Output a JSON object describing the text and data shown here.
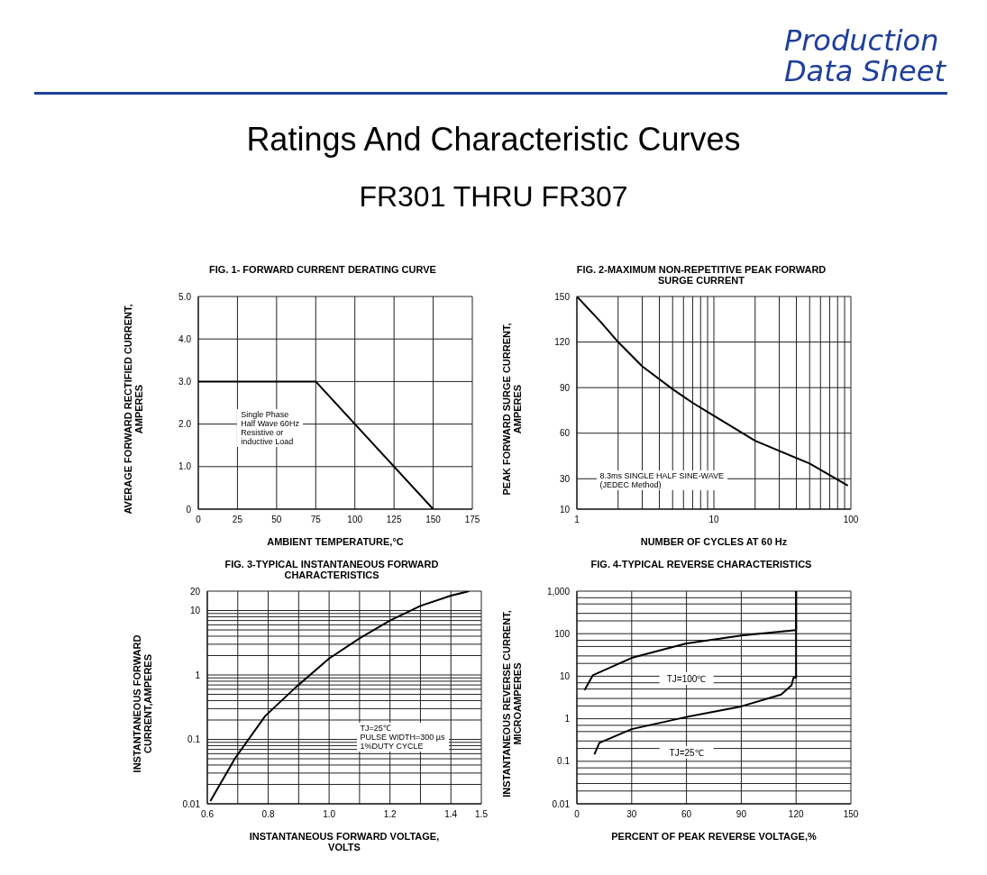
{
  "chart_data": [
    {
      "type": "other",
      "title": "Ratings And  Characteristic Curves",
      "subtitle": "FR301 THRU FR307",
      "annotations": [
        "Production\nData Sheet"
      ]
    },
    {
      "type": "line",
      "title": "FIG. 1- FORWARD CURRENT DERATING CURVE",
      "xlabel": "AMBIENT TEMPERATURE,°C",
      "ylabel": "AVERAGE FORWARD RECTIFIED CURRENT,\nAMPERES",
      "x": [
        0,
        75,
        150
      ],
      "values": [
        3,
        3,
        0
      ],
      "color": "#000000",
      "xlim": [
        0,
        175
      ],
      "xticks": [
        0,
        25,
        50,
        75,
        100,
        125,
        150,
        175
      ],
      "ylim": [
        0,
        5
      ],
      "yticks": [
        0,
        {
          "value": 1,
          "label": "1.0"
        },
        {
          "value": 2,
          "label": "2.0"
        },
        {
          "value": 3,
          "label": "3.0"
        },
        {
          "value": 4,
          "label": "4.0"
        },
        {
          "value": 5,
          "label": "5.0"
        }
      ],
      "grid": true,
      "annotations": [
        "Single Phase\nHalf Wave 60Hz\nResistive or\ninductive Load"
      ]
    },
    {
      "type": "line",
      "title": "FIG. 2-MAXIMUM NON-REPETITIVE PEAK FORWARD\nSURGE CURRENT",
      "xlabel": "NUMBER OF CYCLES AT 60 Hz",
      "ylabel": "PEAK  FORWARD SURGE CURRENT,\nAMPERES",
      "x": [
        1,
        1.5,
        2,
        3,
        5,
        7,
        10,
        20,
        50,
        95
      ],
      "values": [
        150,
        133,
        120,
        104,
        89,
        80,
        71.5,
        55,
        40,
        25.5
      ],
      "color": "#000000",
      "log": "x",
      "xlim": [
        1,
        100
      ],
      "xticks": [
        1,
        {
          "value": 2,
          "label": null
        },
        {
          "value": 3,
          "label": null
        },
        {
          "value": 4,
          "label": null
        },
        {
          "value": 5,
          "label": null
        },
        {
          "value": 6,
          "label": null
        },
        {
          "value": 7,
          "label": null
        },
        {
          "value": 8,
          "label": null
        },
        {
          "value": 9,
          "label": null
        },
        10,
        {
          "value": 20,
          "label": null
        },
        {
          "value": 30,
          "label": null
        },
        {
          "value": 40,
          "label": null
        },
        {
          "value": 50,
          "label": null
        },
        {
          "value": 60,
          "label": null
        },
        {
          "value": 70,
          "label": null
        },
        {
          "value": 80,
          "label": null
        },
        {
          "value": 90,
          "label": null
        },
        100
      ],
      "ylim": [
        10,
        150
      ],
      "yticks": [
        10,
        30,
        60,
        90,
        120,
        150
      ],
      "grid": true,
      "annotations": [
        "8.3ms SINGLE HALF SINE-WAVE\n(JEDEC Method)"
      ]
    },
    {
      "type": "line",
      "title": "FIG. 3-TYPICAL INSTANTANEOUS FORWARD\nCHARACTERISTICS",
      "xlabel": "INSTANTANEOUS FORWARD VOLTAGE,\nVOLTS",
      "ylabel": "INSTANTANEOUS FORWARD\nCURRENT,AMPERES",
      "x": [
        0.61,
        0.69,
        0.79,
        0.89,
        1.0,
        1.1,
        1.2,
        1.3,
        1.4,
        1.46
      ],
      "values": [
        0.011,
        0.05,
        0.23,
        0.64,
        1.8,
        3.7,
        7,
        11.8,
        17,
        20
      ],
      "color": "#000000",
      "log": "y",
      "xlim": [
        0.6,
        1.5
      ],
      "xticks": [
        0.6,
        {
          "value": 0.7,
          "label": null
        },
        0.8,
        {
          "value": 0.9,
          "label": null
        },
        {
          "value": 1,
          "label": "1.0"
        },
        {
          "value": 1.1,
          "label": null
        },
        1.2,
        {
          "value": 1.3,
          "label": null
        },
        1.4,
        1.5
      ],
      "ylim": [
        0.01,
        20
      ],
      "yticks": [
        0.01,
        {
          "value": 0.02,
          "label": null
        },
        {
          "value": 0.03,
          "label": null
        },
        {
          "value": 0.04,
          "label": null
        },
        {
          "value": 0.05,
          "label": null
        },
        {
          "value": 0.06,
          "label": null
        },
        {
          "value": 0.07,
          "label": null
        },
        {
          "value": 0.08,
          "label": null
        },
        {
          "value": 0.09,
          "label": null
        },
        0.1,
        {
          "value": 0.2,
          "label": null
        },
        {
          "value": 0.3,
          "label": null
        },
        {
          "value": 0.4,
          "label": null
        },
        {
          "value": 0.5,
          "label": null
        },
        {
          "value": 0.6,
          "label": null
        },
        {
          "value": 0.7,
          "label": null
        },
        {
          "value": 0.8,
          "label": null
        },
        {
          "value": 0.9,
          "label": null
        },
        1,
        {
          "value": 2,
          "label": null
        },
        {
          "value": 3,
          "label": null
        },
        {
          "value": 4,
          "label": null
        },
        {
          "value": 5,
          "label": null
        },
        {
          "value": 6,
          "label": null
        },
        {
          "value": 7,
          "label": null
        },
        {
          "value": 8,
          "label": null
        },
        {
          "value": 9,
          "label": null
        },
        10,
        20
      ],
      "grid": true,
      "annotations": [
        "TJ=25℃\nPULSE WIDTH=300 µs\n1%DUTY CYCLE"
      ]
    },
    {
      "type": "line",
      "title": "FIG. 4-TYPICAL REVERSE CHARACTERISTICS",
      "xlabel": "PERCENT OF PEAK REVERSE VOLTAGE,%",
      "ylabel": "INSTANTANEOUS REVERSE CURRENT,\nMICROAMPERES",
      "log": "y",
      "xlim": [
        0,
        150
      ],
      "xticks": [
        0,
        30,
        60,
        90,
        120,
        150
      ],
      "ylim": [
        0.01,
        1000
      ],
      "yticks": [
        0.01,
        {
          "value": 0.02,
          "label": null
        },
        {
          "value": 0.03,
          "label": null
        },
        {
          "value": 0.05,
          "label": null
        },
        {
          "value": 0.07,
          "label": null
        },
        0.1,
        {
          "value": 0.2,
          "label": null
        },
        {
          "value": 0.3,
          "label": null
        },
        {
          "value": 0.5,
          "label": null
        },
        {
          "value": 0.7,
          "label": null
        },
        1,
        {
          "value": 2,
          "label": null
        },
        {
          "value": 3,
          "label": null
        },
        {
          "value": 5,
          "label": null
        },
        {
          "value": 7,
          "label": null
        },
        10,
        {
          "value": 20,
          "label": null
        },
        {
          "value": 30,
          "label": null
        },
        {
          "value": 50,
          "label": null
        },
        {
          "value": 70,
          "label": null
        },
        100,
        {
          "value": 200,
          "label": null
        },
        {
          "value": 300,
          "label": null
        },
        {
          "value": 500,
          "label": null
        },
        {
          "value": 700,
          "label": null
        },
        {
          "value": 1000,
          "label": "1,000"
        }
      ],
      "grid": true,
      "series": [
        {
          "name": "TJ=100℃",
          "color": "#000000",
          "x": [
            4.2,
            8.7,
            30,
            60,
            90,
            118.6,
            120,
            120
          ],
          "values": [
            4.7,
            10.5,
            27,
            59,
            90,
            120,
            120,
            1000
          ]
        },
        {
          "name": "TJ=25℃",
          "color": "#000000",
          "x": [
            9.6,
            12.3,
            30,
            60,
            90,
            111.8,
            117.5,
            118.6,
            120,
            120
          ],
          "values": [
            0.145,
            0.27,
            0.57,
            1.1,
            1.95,
            3.7,
            6.1,
            9.3,
            9.3,
            1000
          ]
        }
      ]
    }
  ]
}
